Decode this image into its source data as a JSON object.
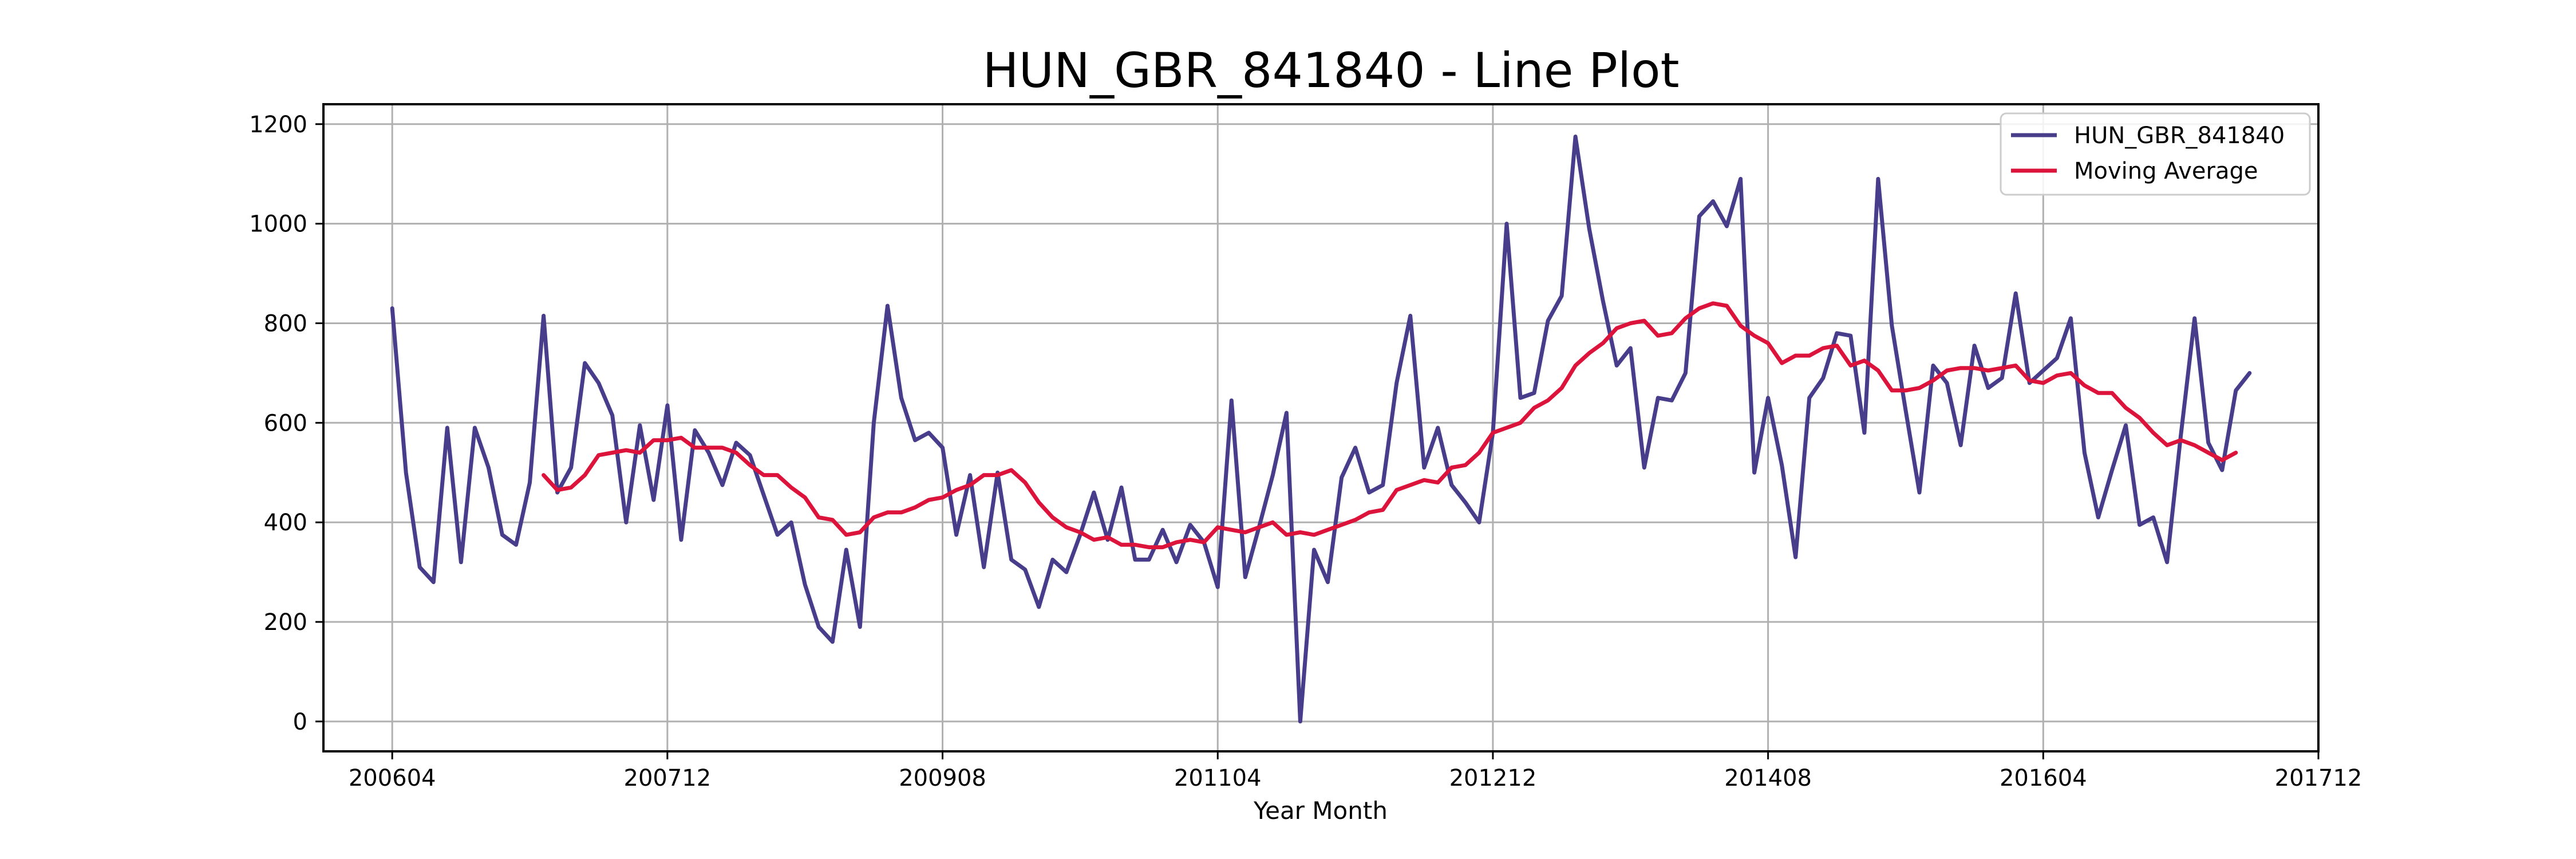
{
  "chart_data": {
    "type": "line",
    "title": "HUN_GBR_841840 - Line Plot",
    "xlabel": "Year Month",
    "ylabel": "",
    "x_start": "2006-04",
    "x_ticks": [
      "200604",
      "200712",
      "200908",
      "201104",
      "201212",
      "201408",
      "201604",
      "201712"
    ],
    "xlim": [
      "2005-11",
      "2017-12"
    ],
    "ylim": [
      -60,
      1240
    ],
    "y_ticks": [
      0,
      200,
      400,
      600,
      800,
      1000,
      1200
    ],
    "grid": true,
    "legend_position": "top-right",
    "series": [
      {
        "name": "HUN_GBR_841840",
        "color": "#483d8b",
        "values": [
          830,
          500,
          310,
          280,
          590,
          320,
          590,
          510,
          375,
          355,
          480,
          815,
          460,
          510,
          720,
          680,
          615,
          400,
          595,
          445,
          635,
          365,
          585,
          540,
          475,
          560,
          535,
          455,
          375,
          400,
          275,
          190,
          160,
          345,
          190,
          600,
          835,
          650,
          565,
          580,
          550,
          375,
          495,
          310,
          500,
          325,
          305,
          230,
          325,
          300,
          375,
          460,
          365,
          470,
          325,
          325,
          385,
          320,
          395,
          360,
          270,
          645,
          290,
          390,
          495,
          620,
          0,
          345,
          280,
          490,
          550,
          460,
          475,
          680,
          815,
          510,
          590,
          475,
          440,
          400,
          580,
          1000,
          650,
          660,
          805,
          855,
          1175,
          990,
          845,
          715,
          750,
          510,
          650,
          645,
          700,
          1015,
          1045,
          995,
          1090,
          500,
          650,
          515,
          330,
          650,
          690,
          780,
          775,
          580,
          1090,
          795,
          625,
          460,
          715,
          680,
          555,
          755,
          670,
          690,
          860,
          680,
          705,
          730,
          810,
          540,
          410,
          505,
          595,
          395,
          410,
          320,
          575,
          810,
          560,
          505,
          665,
          700
        ]
      },
      {
        "name": "Moving Average",
        "color": "#dc143c",
        "start_index": 11,
        "values": [
          495,
          465,
          470,
          495,
          535,
          540,
          545,
          540,
          565,
          565,
          570,
          550,
          550,
          550,
          540,
          515,
          495,
          495,
          470,
          450,
          410,
          405,
          375,
          380,
          410,
          420,
          420,
          430,
          445,
          450,
          465,
          475,
          495,
          495,
          505,
          480,
          440,
          410,
          390,
          380,
          365,
          370,
          355,
          355,
          350,
          350,
          360,
          365,
          360,
          390,
          385,
          380,
          390,
          400,
          375,
          380,
          375,
          385,
          395,
          405,
          420,
          425,
          465,
          475,
          485,
          480,
          510,
          515,
          540,
          580,
          590,
          600,
          630,
          645,
          670,
          715,
          740,
          760,
          790,
          800,
          805,
          775,
          780,
          810,
          830,
          840,
          835,
          795,
          775,
          760,
          720,
          735,
          735,
          750,
          755,
          715,
          725,
          705,
          665,
          665,
          670,
          685,
          705,
          710,
          710,
          705,
          710,
          715,
          685,
          680,
          695,
          700,
          675,
          660,
          660,
          630,
          610,
          580,
          555,
          565,
          555,
          540,
          525,
          540
        ]
      }
    ]
  }
}
